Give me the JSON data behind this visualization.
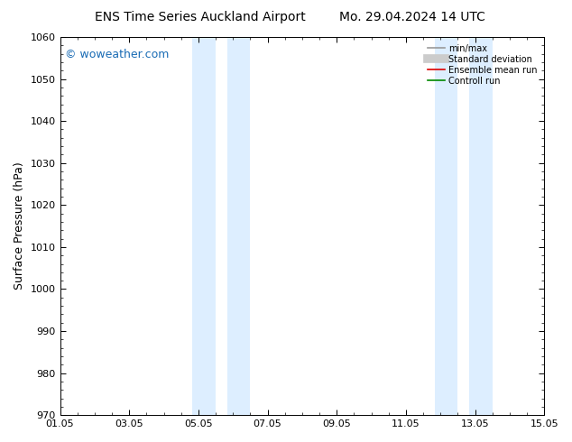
{
  "title_left": "ENS Time Series Auckland Airport",
  "title_right": "Mo. 29.04.2024 14 UTC",
  "ylabel": "Surface Pressure (hPa)",
  "ylim": [
    970,
    1060
  ],
  "yticks": [
    970,
    980,
    990,
    1000,
    1010,
    1020,
    1030,
    1040,
    1050,
    1060
  ],
  "xlim": [
    0,
    14
  ],
  "xtick_positions": [
    0,
    2,
    4,
    6,
    8,
    10,
    12,
    14
  ],
  "xtick_labels": [
    "01.05",
    "03.05",
    "05.05",
    "07.05",
    "09.05",
    "11.05",
    "13.05",
    "15.05"
  ],
  "shaded_regions": [
    {
      "xmin": 3.83,
      "xmax": 4.5
    },
    {
      "xmin": 4.83,
      "xmax": 5.5
    },
    {
      "xmin": 10.83,
      "xmax": 11.5
    },
    {
      "xmin": 11.83,
      "xmax": 12.5
    }
  ],
  "shaded_color": "#ddeeff",
  "watermark": "© woweather.com",
  "watermark_color": "#1a6cb5",
  "legend_entries": [
    {
      "label": "min/max",
      "color": "#999999",
      "lw": 1.2,
      "type": "line"
    },
    {
      "label": "Standard deviation",
      "color": "#cccccc",
      "lw": 7,
      "type": "line"
    },
    {
      "label": "Ensemble mean run",
      "color": "#dd0000",
      "lw": 1.2,
      "type": "line"
    },
    {
      "label": "Controll run",
      "color": "#008800",
      "lw": 1.2,
      "type": "line"
    }
  ],
  "bg_color": "#ffffff",
  "font_family": "DejaVu Sans",
  "title_fontsize": 10,
  "tick_fontsize": 8,
  "ylabel_fontsize": 9,
  "watermark_fontsize": 9
}
